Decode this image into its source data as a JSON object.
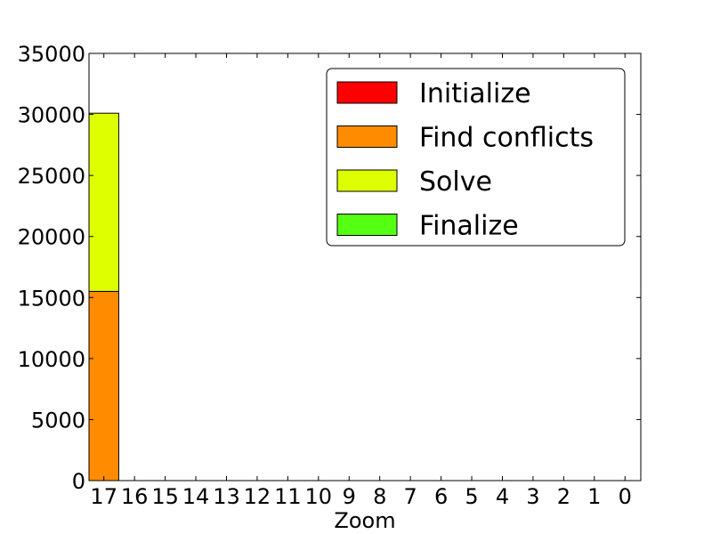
{
  "chart_data": {
    "type": "bar",
    "stacked": true,
    "xlabel": "Zoom",
    "ylabel": "",
    "ylim": [
      0,
      35000
    ],
    "yticks": [
      0,
      5000,
      10000,
      15000,
      20000,
      25000,
      30000,
      35000
    ],
    "grid": false,
    "legend_position": "top-right",
    "categories": [
      "17",
      "16",
      "15",
      "14",
      "13",
      "12",
      "11",
      "10",
      "9",
      "8",
      "7",
      "6",
      "5",
      "4",
      "3",
      "2",
      "1",
      "0"
    ],
    "series": [
      {
        "name": "Initialize",
        "color": "#ff0000",
        "values": [
          0,
          0,
          0,
          0,
          0,
          0,
          0,
          0,
          0,
          0,
          0,
          0,
          0,
          0,
          0,
          0,
          0,
          0
        ]
      },
      {
        "name": "Find conflicts",
        "color": "#ff8c00",
        "values": [
          15500,
          0,
          0,
          0,
          0,
          0,
          0,
          0,
          0,
          0,
          0,
          0,
          0,
          0,
          0,
          0,
          0,
          0
        ]
      },
      {
        "name": "Solve",
        "color": "#ddff00",
        "values": [
          14600,
          0,
          0,
          0,
          0,
          0,
          0,
          0,
          0,
          0,
          0,
          0,
          0,
          0,
          0,
          0,
          0,
          0
        ]
      },
      {
        "name": "Finalize",
        "color": "#55ff11",
        "values": [
          0,
          0,
          0,
          0,
          0,
          0,
          0,
          0,
          0,
          0,
          0,
          0,
          0,
          0,
          0,
          0,
          0,
          0
        ]
      }
    ]
  }
}
